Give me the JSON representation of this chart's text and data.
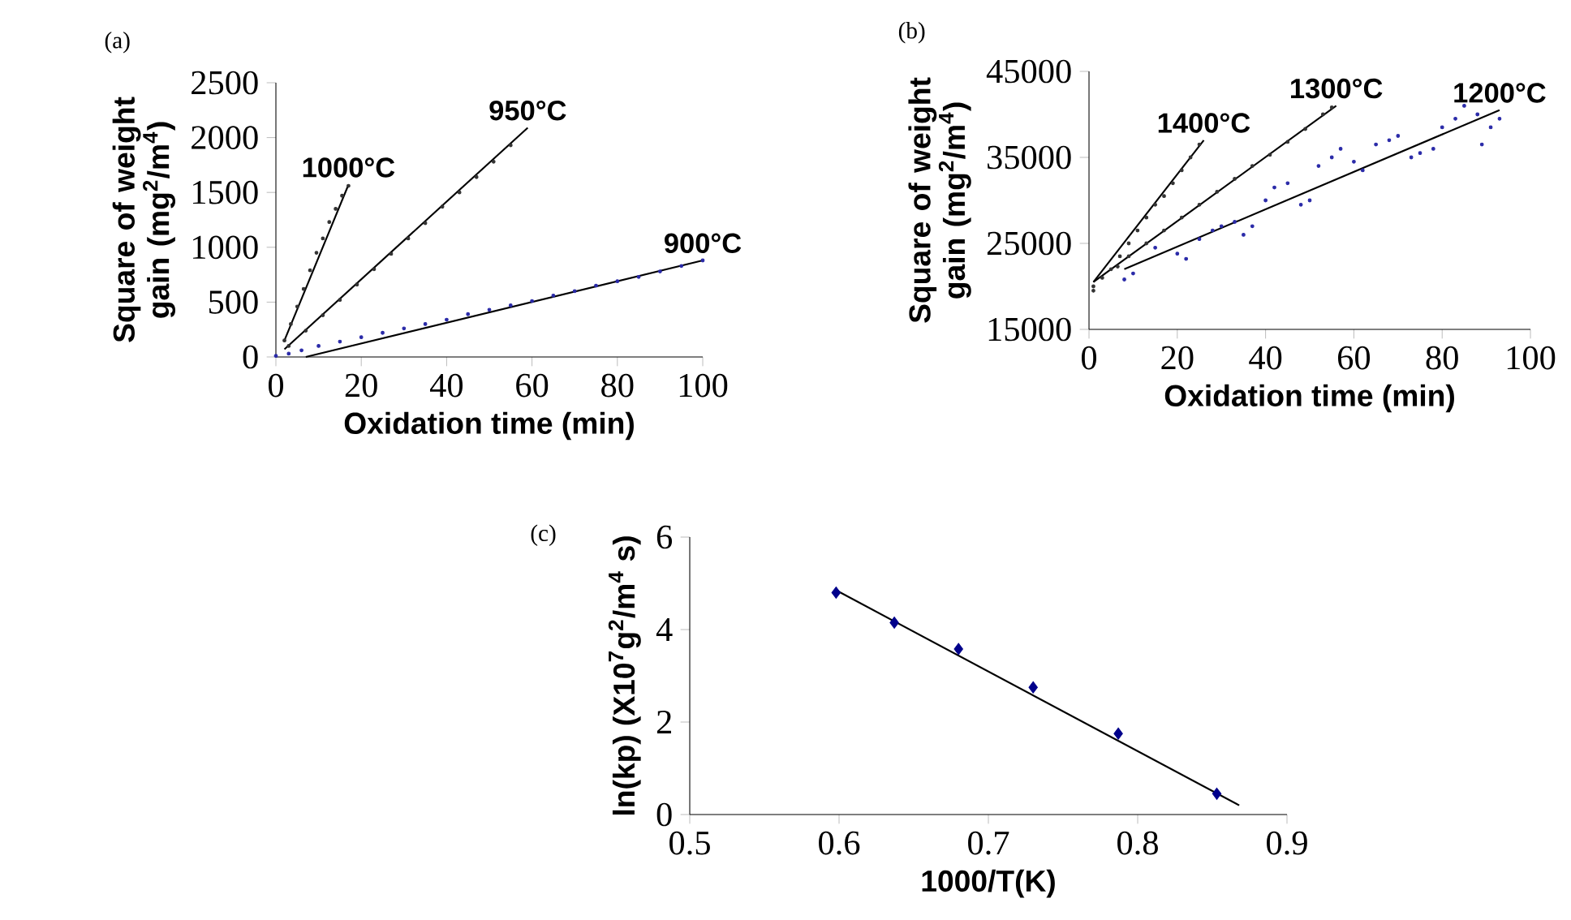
{
  "chart_data": [
    {
      "type": "scatter",
      "title": "(a)",
      "xlabel": "Oxidation time (min)",
      "ylabel": "Square of weight gain (mg$^{2}$/m$^{4}$)",
      "xlim": [
        0,
        100
      ],
      "ylim": [
        0,
        2500
      ],
      "xticks": [
        0,
        20,
        40,
        60,
        80,
        100
      ],
      "yticks": [
        0,
        500,
        1000,
        1500,
        2000,
        2500
      ],
      "marker": "circle",
      "series": [
        {
          "color": "#333333",
          "x": [
            2,
            3.5,
            5,
            6.5,
            8,
            9.5,
            11,
            12.5,
            14,
            15.5,
            17
          ],
          "values": [
            150,
            300,
            460,
            620,
            790,
            950,
            1080,
            1230,
            1350,
            1470,
            1560
          ]
        },
        {
          "color": "#333333",
          "x": [
            3,
            7,
            11,
            15,
            19,
            23,
            27,
            31,
            35,
            39,
            43,
            47,
            51,
            55
          ],
          "values": [
            100,
            240,
            380,
            520,
            660,
            800,
            940,
            1080,
            1220,
            1370,
            1500,
            1640,
            1780,
            1930
          ]
        },
        {
          "color": "#2a2aa8",
          "x": [
            0,
            3,
            6,
            10,
            15,
            20,
            25,
            30,
            35,
            40,
            45,
            50,
            55,
            60,
            65,
            70,
            75,
            80,
            85,
            90,
            95,
            100
          ],
          "values": [
            10,
            30,
            60,
            100,
            140,
            180,
            220,
            260,
            300,
            340,
            390,
            430,
            470,
            510,
            560,
            600,
            650,
            690,
            730,
            780,
            830,
            880
          ]
        },
        {
          "type": "line",
          "marker": "none",
          "name": "1000°C",
          "color": "#000000",
          "x": [
            2,
            17
          ],
          "values": [
            150,
            1570
          ]
        },
        {
          "type": "line",
          "marker": "none",
          "name": "950°C",
          "color": "#000000",
          "x": [
            2,
            59
          ],
          "values": [
            70,
            2090
          ]
        },
        {
          "type": "line",
          "marker": "none",
          "name": "900°C",
          "color": "#000000",
          "x": [
            7,
            100
          ],
          "values": [
            0,
            880
          ]
        }
      ]
    },
    {
      "type": "scatter",
      "title": "(b)",
      "xlabel": "Oxidation time (min)",
      "ylabel": "Square of weight gain (mg$^{2}$/m$^{4}$)",
      "xlim": [
        0,
        100
      ],
      "ylim": [
        15000,
        45000
      ],
      "xticks": [
        0,
        20,
        40,
        60,
        80,
        100
      ],
      "yticks": [
        15000,
        25000,
        35000,
        45000
      ],
      "marker": "circle",
      "series": [
        {
          "color": "#333333",
          "x": [
            1,
            3,
            5,
            7,
            9,
            11,
            13,
            15,
            17,
            19,
            21,
            23,
            25
          ],
          "values": [
            19500,
            21000,
            22000,
            23500,
            25000,
            26500,
            28000,
            29500,
            30500,
            32000,
            33500,
            35000,
            36500
          ]
        },
        {
          "color": "#333333",
          "x": [
            1,
            6.5,
            9,
            13,
            17,
            21,
            25,
            29,
            33,
            37,
            41,
            45,
            49,
            53,
            55
          ],
          "values": [
            20000,
            22300,
            23500,
            25000,
            26500,
            28000,
            29500,
            31000,
            32500,
            34000,
            35300,
            36800,
            38300,
            40000,
            40800
          ]
        },
        {
          "color": "#2a2aa8",
          "x": [
            8,
            10,
            15,
            20,
            22,
            25,
            28,
            30,
            33,
            35,
            37,
            40,
            42,
            45,
            48,
            50,
            52,
            55,
            57,
            60,
            62,
            65,
            68,
            70,
            73,
            75,
            78,
            80,
            83,
            85,
            88,
            89,
            91,
            93
          ],
          "values": [
            20800,
            21500,
            24500,
            23800,
            23200,
            25500,
            26500,
            27000,
            27500,
            26000,
            27000,
            30000,
            31500,
            32000,
            29500,
            30000,
            34000,
            35000,
            36000,
            34500,
            33500,
            36500,
            37000,
            37500,
            35000,
            35500,
            36000,
            38500,
            39500,
            41000,
            40000,
            36500,
            38500,
            39500
          ]
        },
        {
          "type": "line",
          "marker": "none",
          "name": "1400°C",
          "color": "#000000",
          "x": [
            1,
            26
          ],
          "values": [
            20500,
            37000
          ]
        },
        {
          "type": "line",
          "marker": "none",
          "name": "1300°C",
          "color": "#000000",
          "x": [
            1,
            56
          ],
          "values": [
            20500,
            41000
          ]
        },
        {
          "type": "line",
          "marker": "none",
          "name": "1200°C",
          "color": "#000000",
          "x": [
            8,
            93
          ],
          "values": [
            22000,
            40500
          ]
        }
      ]
    },
    {
      "type": "scatter",
      "title": "(c)",
      "xlabel": "1000/T(K)",
      "ylabel": "ln(kp) (X10$^{7}$g$^{2}$/m$^{4}$ s)",
      "xlim": [
        0.5,
        0.9
      ],
      "ylim": [
        0,
        6
      ],
      "xticks": [
        0.5,
        0.6,
        0.7,
        0.8,
        0.9
      ],
      "yticks": [
        0,
        2,
        4,
        6
      ],
      "marker": "diamond",
      "series": [
        {
          "color": "#00008b",
          "x": [
            0.598,
            0.637,
            0.68,
            0.73,
            0.787,
            0.853
          ],
          "values": [
            4.8,
            4.15,
            3.58,
            2.75,
            1.75,
            0.45
          ]
        },
        {
          "type": "line",
          "marker": "none",
          "color": "#000000",
          "x": [
            0.598,
            0.868
          ],
          "values": [
            4.85,
            0.2
          ]
        }
      ]
    }
  ]
}
